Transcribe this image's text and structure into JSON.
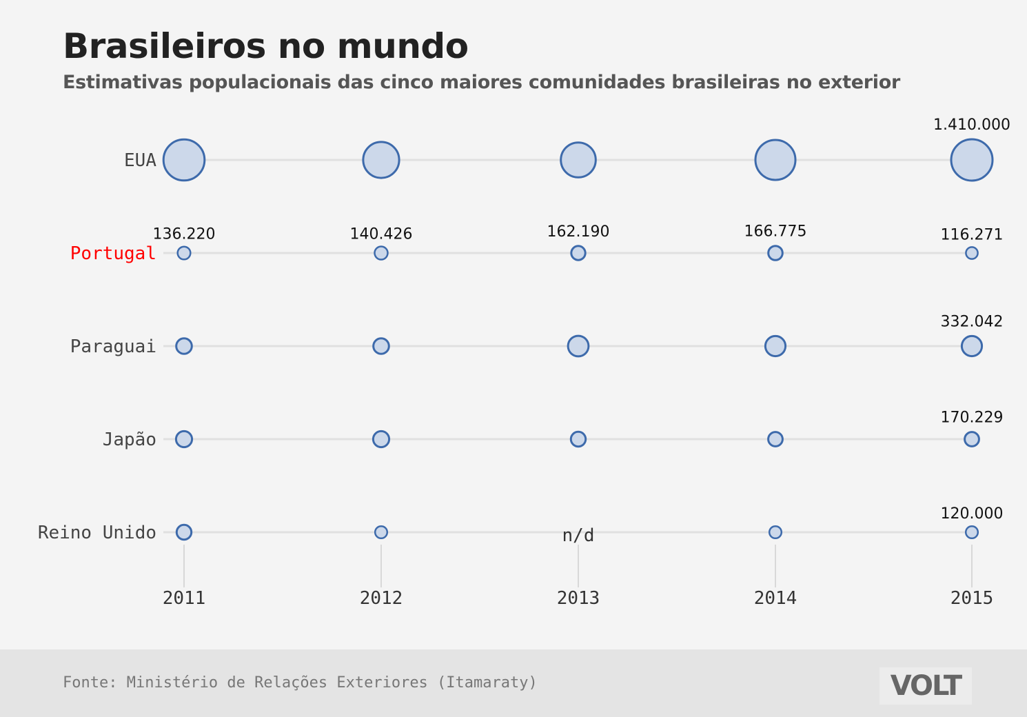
{
  "title": "Brasileiros no mundo",
  "subtitle": "Estimativas populacionais das cinco maiores comunidades brasileiras no exterior",
  "source": "Fonte: Ministério de Relações Exteriores (Itamaraty)",
  "logo": "VOLT",
  "colors": {
    "background": "#f4f4f4",
    "footer": "#e4e4e4",
    "bubble_stroke": "#3d6aab",
    "bubble_fill": "#ccd8ea",
    "track": "#e0e0e0",
    "highlight_label": "#ff0000",
    "label": "#444444"
  },
  "chart_data": {
    "type": "scatter",
    "encoding": "bubble",
    "x": [
      "2011",
      "2012",
      "2013",
      "2014",
      "2015"
    ],
    "series": [
      {
        "name": "EUA",
        "highlight": false,
        "values": [
          1388000,
          1067000,
          1006000,
          1315000,
          1410000
        ],
        "labels": [
          "",
          "",
          "",
          "",
          "1.410.000"
        ]
      },
      {
        "name": "Portugal",
        "highlight": true,
        "values": [
          136220,
          140426,
          162190,
          166775,
          116271
        ],
        "labels": [
          "136.220",
          "140.426",
          "162.190",
          "166.775",
          "116.271"
        ]
      },
      {
        "name": "Paraguai",
        "highlight": false,
        "values": [
          200000,
          200000,
          349842,
          332042,
          332042
        ],
        "labels": [
          "",
          "",
          "",
          "",
          "332.042"
        ]
      },
      {
        "name": "Japão",
        "highlight": false,
        "values": [
          210032,
          210032,
          179649,
          170229,
          170229
        ],
        "labels": [
          "",
          "",
          "",
          "",
          "170.229"
        ]
      },
      {
        "name": "Reino Unido",
        "highlight": false,
        "values": [
          180000,
          120000,
          null,
          120000,
          120000
        ],
        "labels": [
          "",
          "",
          "n/d",
          "",
          "120.000"
        ]
      }
    ]
  }
}
